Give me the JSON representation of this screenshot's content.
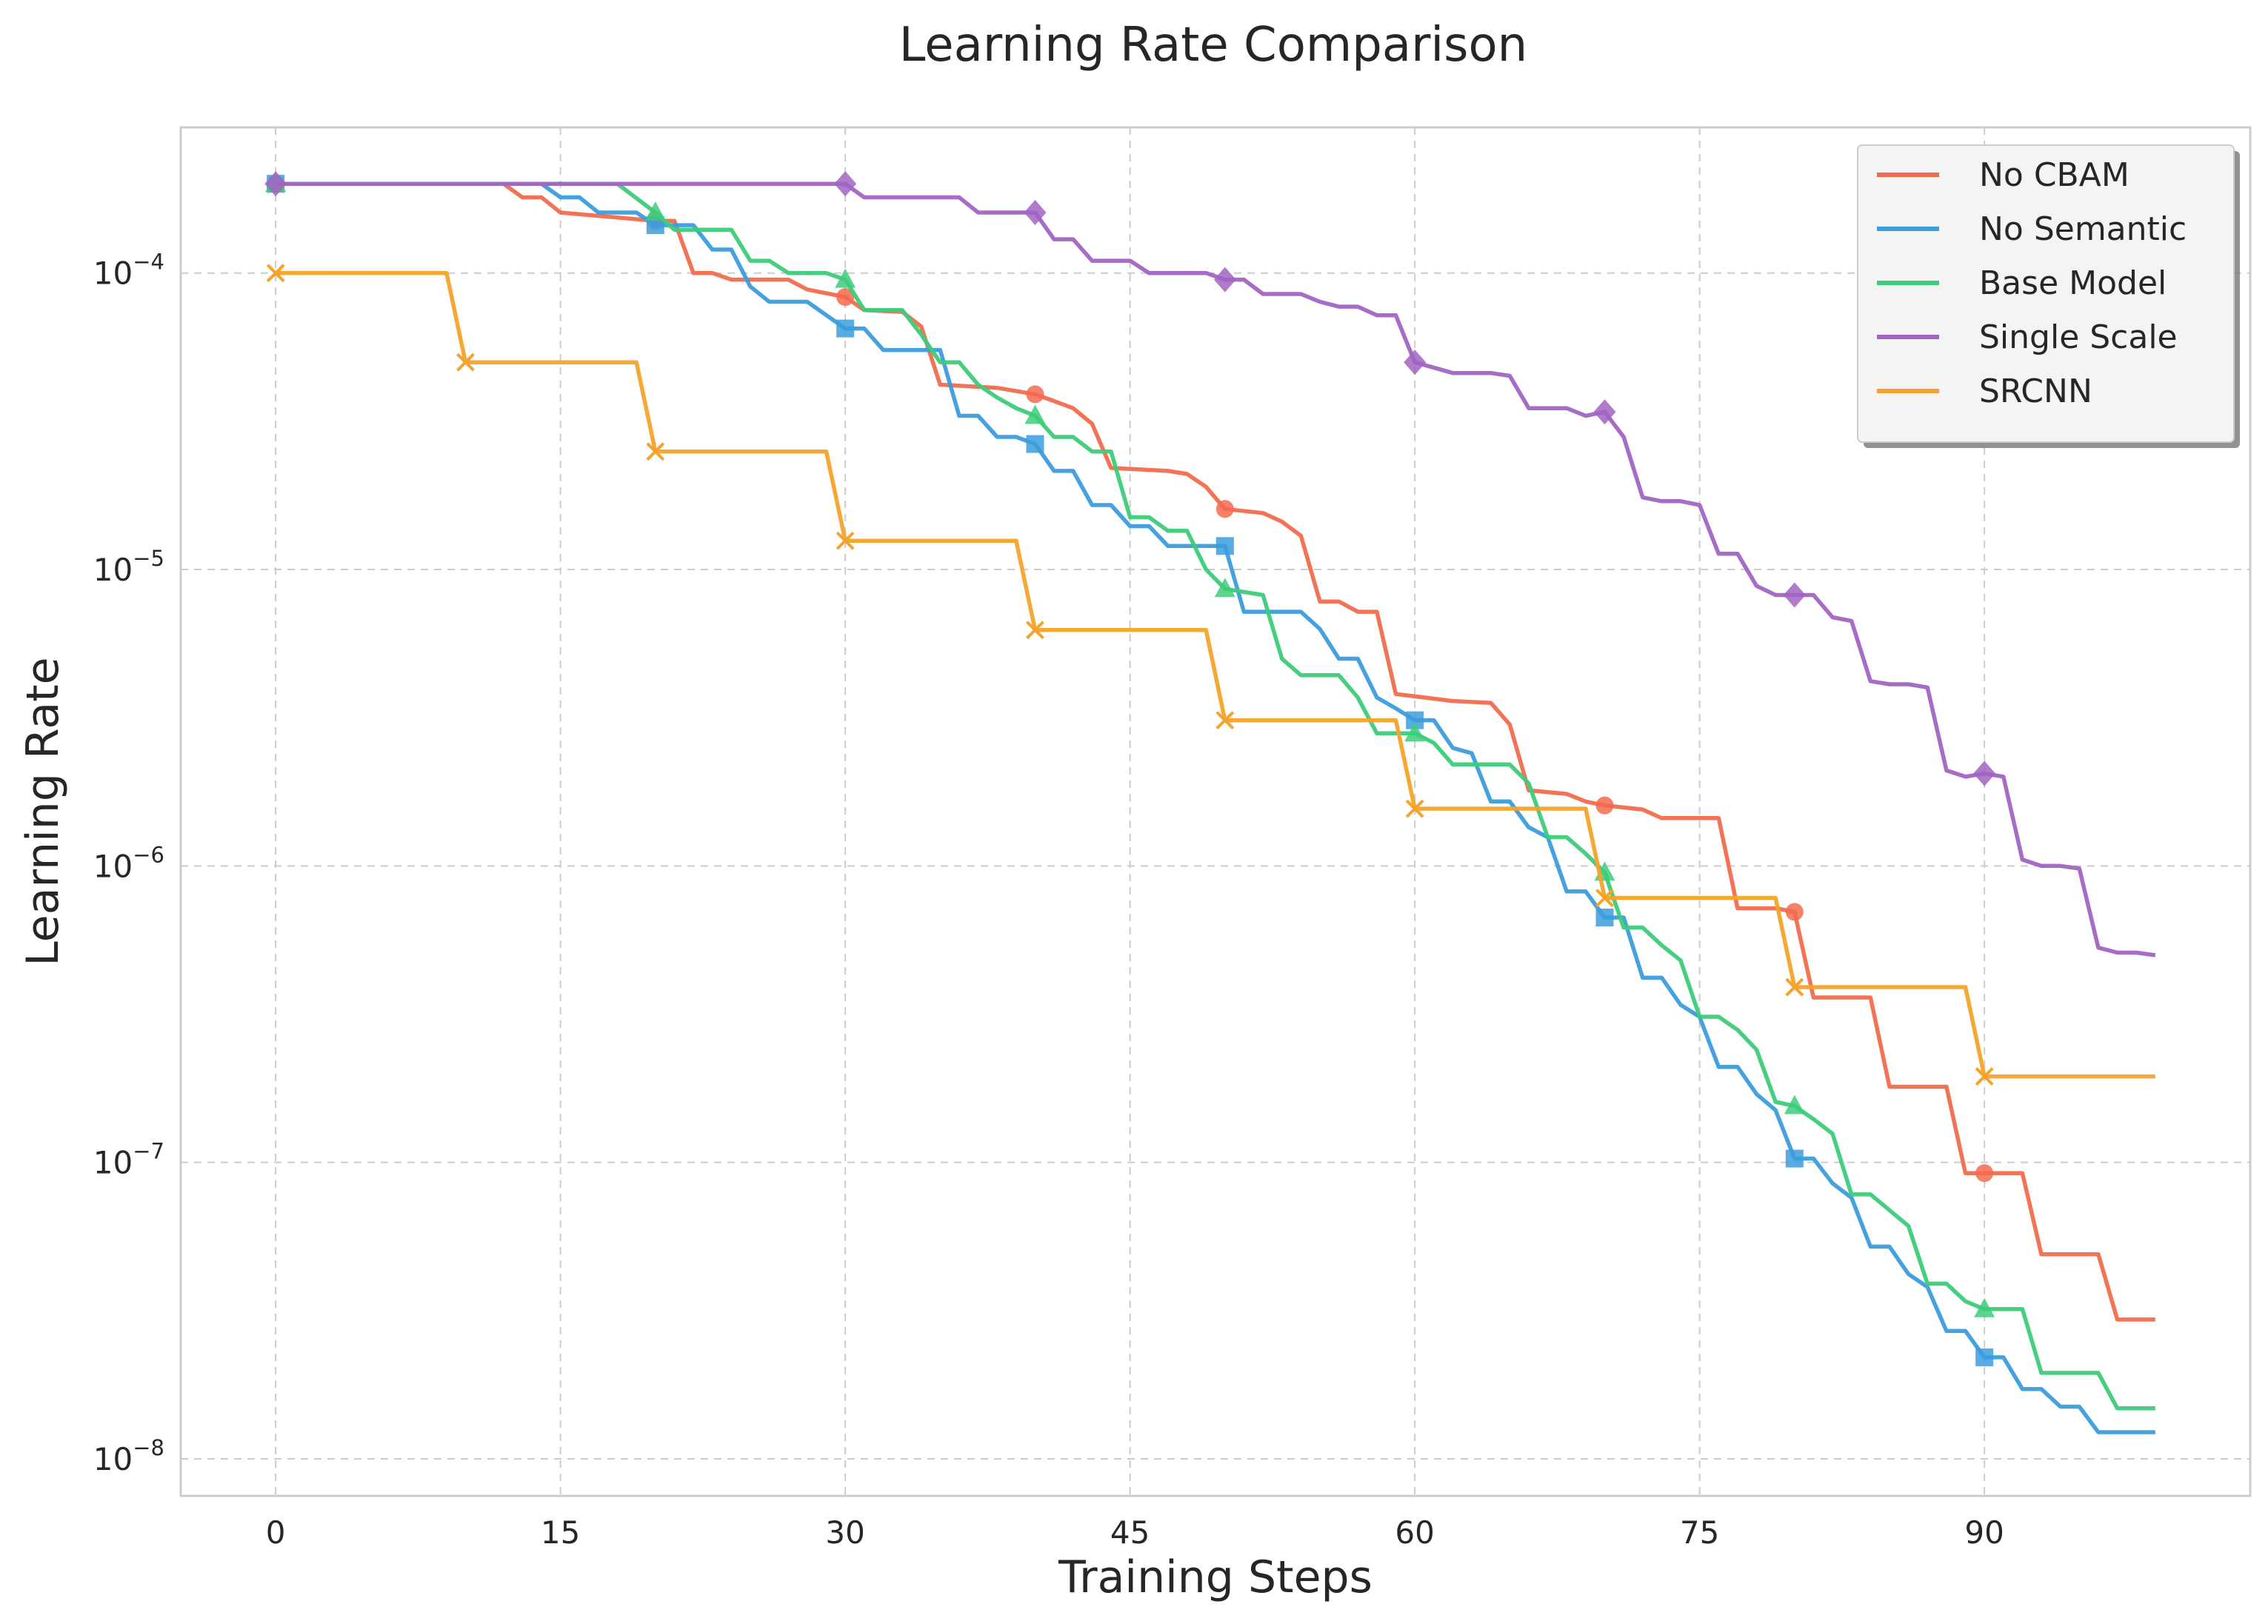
{
  "chart_data": {
    "type": "line",
    "title": "Learning Rate Comparison",
    "xlabel": "Training Steps",
    "ylabel": "Learning Rate",
    "xlim": [
      -5,
      104
    ],
    "ylim": [
      7.5e-09,
      0.00031
    ],
    "yscale": "log",
    "grid": true,
    "legend_position": "top-right",
    "x_ticks": [
      0,
      15,
      30,
      45,
      60,
      75,
      90
    ],
    "x_tick_labels": [
      "0",
      "15",
      "30",
      "45",
      "60",
      "75",
      "90"
    ],
    "y_ticks": [
      0.0001,
      1e-05,
      1e-06,
      1e-07,
      1e-08
    ],
    "y_tick_labels": [
      {
        "base": "10",
        "exp": "−4"
      },
      {
        "base": "10",
        "exp": "−5"
      },
      {
        "base": "10",
        "exp": "−6"
      },
      {
        "base": "10",
        "exp": "−7"
      },
      {
        "base": "10",
        "exp": "−8"
      }
    ],
    "marker_every": 10,
    "series": [
      {
        "name": "No CBAM",
        "color": "#f26b4d",
        "marker": "circle",
        "points": [
          [
            0,
            0.0002
          ],
          [
            12,
            0.0002
          ],
          [
            13,
            0.00018
          ],
          [
            14,
            0.00018
          ],
          [
            15,
            0.00016
          ],
          [
            20,
            0.00015
          ],
          [
            21,
            0.00015
          ],
          [
            22,
            0.0001
          ],
          [
            23,
            0.0001
          ],
          [
            24,
            9.5e-05
          ],
          [
            27,
            9.5e-05
          ],
          [
            28,
            8.8e-05
          ],
          [
            30,
            8.3e-05
          ],
          [
            31,
            7.5e-05
          ],
          [
            33,
            7.4e-05
          ],
          [
            34,
            6.6e-05
          ],
          [
            35,
            4.2e-05
          ],
          [
            38,
            4.1e-05
          ],
          [
            40,
            3.9e-05
          ],
          [
            41,
            3.7e-05
          ],
          [
            42,
            3.5e-05
          ],
          [
            43,
            3.1e-05
          ],
          [
            44,
            2.2e-05
          ],
          [
            47,
            2.15e-05
          ],
          [
            48,
            2.1e-05
          ],
          [
            49,
            1.9e-05
          ],
          [
            50,
            1.6e-05
          ],
          [
            52,
            1.55e-05
          ],
          [
            53,
            1.45e-05
          ],
          [
            54,
            1.3e-05
          ],
          [
            55,
            7.8e-06
          ],
          [
            56,
            7.8e-06
          ],
          [
            57,
            7.2e-06
          ],
          [
            58,
            7.2e-06
          ],
          [
            59,
            3.8e-06
          ],
          [
            62,
            3.6e-06
          ],
          [
            64,
            3.55e-06
          ],
          [
            65,
            3e-06
          ],
          [
            66,
            1.8e-06
          ],
          [
            68,
            1.75e-06
          ],
          [
            69,
            1.65e-06
          ],
          [
            70,
            1.6e-06
          ],
          [
            72,
            1.55e-06
          ],
          [
            73,
            1.45e-06
          ],
          [
            75,
            1.45e-06
          ],
          [
            76,
            1.45e-06
          ],
          [
            77,
            7.2e-07
          ],
          [
            79,
            7.2e-07
          ],
          [
            80,
            7e-07
          ],
          [
            81,
            3.6e-07
          ],
          [
            84,
            3.6e-07
          ],
          [
            85,
            1.8e-07
          ],
          [
            88,
            1.8e-07
          ],
          [
            89,
            9.2e-08
          ],
          [
            90,
            9.2e-08
          ],
          [
            92,
            9.2e-08
          ],
          [
            93,
            4.9e-08
          ],
          [
            96,
            4.9e-08
          ],
          [
            97,
            2.95e-08
          ],
          [
            99,
            2.95e-08
          ]
        ]
      },
      {
        "name": "No Semantic",
        "color": "#3b9ddd",
        "marker": "square",
        "points": [
          [
            0,
            0.0002
          ],
          [
            13,
            0.0002
          ],
          [
            14,
            0.0002
          ],
          [
            15,
            0.00018
          ],
          [
            16,
            0.00018
          ],
          [
            17,
            0.00016
          ],
          [
            19,
            0.00016
          ],
          [
            20,
            0.000145
          ],
          [
            22,
            0.000145
          ],
          [
            23,
            0.00012
          ],
          [
            24,
            0.00012
          ],
          [
            25,
            9e-05
          ],
          [
            26,
            8e-05
          ],
          [
            28,
            8e-05
          ],
          [
            30,
            6.5e-05
          ],
          [
            31,
            6.5e-05
          ],
          [
            32,
            5.5e-05
          ],
          [
            35,
            5.5e-05
          ],
          [
            36,
            3.3e-05
          ],
          [
            37,
            3.3e-05
          ],
          [
            38,
            2.8e-05
          ],
          [
            39,
            2.8e-05
          ],
          [
            40,
            2.65e-05
          ],
          [
            41,
            2.15e-05
          ],
          [
            42,
            2.15e-05
          ],
          [
            43,
            1.65e-05
          ],
          [
            44,
            1.65e-05
          ],
          [
            45,
            1.4e-05
          ],
          [
            46,
            1.4e-05
          ],
          [
            47,
            1.2e-05
          ],
          [
            50,
            1.2e-05
          ],
          [
            51,
            7.2e-06
          ],
          [
            54,
            7.2e-06
          ],
          [
            55,
            6.3e-06
          ],
          [
            56,
            5e-06
          ],
          [
            57,
            5e-06
          ],
          [
            58,
            3.7e-06
          ],
          [
            59,
            3.4e-06
          ],
          [
            60,
            3.1e-06
          ],
          [
            61,
            3.1e-06
          ],
          [
            62,
            2.5e-06
          ],
          [
            63,
            2.4e-06
          ],
          [
            64,
            1.65e-06
          ],
          [
            65,
            1.65e-06
          ],
          [
            66,
            1.35e-06
          ],
          [
            67,
            1.25e-06
          ],
          [
            68,
            8.2e-07
          ],
          [
            69,
            8.2e-07
          ],
          [
            70,
            6.7e-07
          ],
          [
            71,
            6.7e-07
          ],
          [
            72,
            4.2e-07
          ],
          [
            73,
            4.2e-07
          ],
          [
            74,
            3.4e-07
          ],
          [
            75,
            3.1e-07
          ],
          [
            76,
            2.1e-07
          ],
          [
            77,
            2.1e-07
          ],
          [
            78,
            1.7e-07
          ],
          [
            79,
            1.5e-07
          ],
          [
            80,
            1.03e-07
          ],
          [
            81,
            1.03e-07
          ],
          [
            82,
            8.5e-08
          ],
          [
            83,
            7.6e-08
          ],
          [
            84,
            5.2e-08
          ],
          [
            85,
            5.2e-08
          ],
          [
            86,
            4.2e-08
          ],
          [
            87,
            3.8e-08
          ],
          [
            88,
            2.7e-08
          ],
          [
            89,
            2.7e-08
          ],
          [
            90,
            2.2e-08
          ],
          [
            91,
            2.2e-08
          ],
          [
            92,
            1.72e-08
          ],
          [
            93,
            1.72e-08
          ],
          [
            94,
            1.5e-08
          ],
          [
            95,
            1.5e-08
          ],
          [
            96,
            1.23e-08
          ],
          [
            99,
            1.23e-08
          ]
        ]
      },
      {
        "name": "Base Model",
        "color": "#3dcc7a",
        "marker": "triangle",
        "points": [
          [
            0,
            0.0002
          ],
          [
            18,
            0.0002
          ],
          [
            20,
            0.00016
          ],
          [
            21,
            0.00014
          ],
          [
            24,
            0.00014
          ],
          [
            25,
            0.00011
          ],
          [
            26,
            0.00011
          ],
          [
            27,
            0.0001
          ],
          [
            29,
            0.0001
          ],
          [
            30,
            9.5e-05
          ],
          [
            31,
            7.5e-05
          ],
          [
            33,
            7.5e-05
          ],
          [
            34,
            6.2e-05
          ],
          [
            35,
            5e-05
          ],
          [
            36,
            5e-05
          ],
          [
            37,
            4.2e-05
          ],
          [
            38,
            3.8e-05
          ],
          [
            39,
            3.5e-05
          ],
          [
            40,
            3.3e-05
          ],
          [
            41,
            2.8e-05
          ],
          [
            42,
            2.8e-05
          ],
          [
            43,
            2.5e-05
          ],
          [
            44,
            2.5e-05
          ],
          [
            45,
            1.5e-05
          ],
          [
            46,
            1.5e-05
          ],
          [
            47,
            1.35e-05
          ],
          [
            48,
            1.35e-05
          ],
          [
            49,
            1e-05
          ],
          [
            50,
            8.6e-06
          ],
          [
            52,
            8.2e-06
          ],
          [
            53,
            5e-06
          ],
          [
            54,
            4.4e-06
          ],
          [
            56,
            4.4e-06
          ],
          [
            57,
            3.7e-06
          ],
          [
            58,
            2.8e-06
          ],
          [
            59,
            2.8e-06
          ],
          [
            60,
            2.8e-06
          ],
          [
            61,
            2.6e-06
          ],
          [
            62,
            2.2e-06
          ],
          [
            65,
            2.2e-06
          ],
          [
            66,
            1.9e-06
          ],
          [
            67,
            1.25e-06
          ],
          [
            68,
            1.25e-06
          ],
          [
            69,
            1.1e-06
          ],
          [
            70,
            9.5e-07
          ],
          [
            71,
            6.2e-07
          ],
          [
            72,
            6.2e-07
          ],
          [
            73,
            5.4e-07
          ],
          [
            74,
            4.8e-07
          ],
          [
            75,
            3.1e-07
          ],
          [
            76,
            3.1e-07
          ],
          [
            77,
            2.8e-07
          ],
          [
            78,
            2.4e-07
          ],
          [
            79,
            1.6e-07
          ],
          [
            80,
            1.55e-07
          ],
          [
            81,
            1.4e-07
          ],
          [
            82,
            1.25e-07
          ],
          [
            83,
            7.8e-08
          ],
          [
            84,
            7.8e-08
          ],
          [
            85,
            6.9e-08
          ],
          [
            86,
            6.1e-08
          ],
          [
            87,
            3.9e-08
          ],
          [
            88,
            3.9e-08
          ],
          [
            89,
            3.4e-08
          ],
          [
            90,
            3.2e-08
          ],
          [
            92,
            3.2e-08
          ],
          [
            93,
            1.95e-08
          ],
          [
            96,
            1.95e-08
          ],
          [
            97,
            1.48e-08
          ],
          [
            99,
            1.48e-08
          ]
        ]
      },
      {
        "name": "Single Scale",
        "color": "#a264c2",
        "marker": "diamond",
        "points": [
          [
            0,
            0.0002
          ],
          [
            30,
            0.0002
          ],
          [
            31,
            0.00018
          ],
          [
            36,
            0.00018
          ],
          [
            37,
            0.00016
          ],
          [
            40,
            0.00016
          ],
          [
            41,
            0.00013
          ],
          [
            42,
            0.00013
          ],
          [
            43,
            0.00011
          ],
          [
            45,
            0.00011
          ],
          [
            46,
            0.0001
          ],
          [
            49,
            0.0001
          ],
          [
            50,
            9.5e-05
          ],
          [
            51,
            9.5e-05
          ],
          [
            52,
            8.5e-05
          ],
          [
            54,
            8.5e-05
          ],
          [
            55,
            8e-05
          ],
          [
            56,
            7.7e-05
          ],
          [
            57,
            7.7e-05
          ],
          [
            58,
            7.2e-05
          ],
          [
            59,
            7.2e-05
          ],
          [
            60,
            5e-05
          ],
          [
            62,
            4.6e-05
          ],
          [
            64,
            4.6e-05
          ],
          [
            65,
            4.5e-05
          ],
          [
            66,
            3.5e-05
          ],
          [
            68,
            3.5e-05
          ],
          [
            69,
            3.3e-05
          ],
          [
            70,
            3.4e-05
          ],
          [
            71,
            2.8e-05
          ],
          [
            72,
            1.75e-05
          ],
          [
            73,
            1.7e-05
          ],
          [
            74,
            1.7e-05
          ],
          [
            75,
            1.65e-05
          ],
          [
            76,
            1.13e-05
          ],
          [
            77,
            1.13e-05
          ],
          [
            78,
            8.8e-06
          ],
          [
            79,
            8.2e-06
          ],
          [
            80,
            8.2e-06
          ],
          [
            81,
            8.2e-06
          ],
          [
            82,
            6.9e-06
          ],
          [
            83,
            6.7e-06
          ],
          [
            84,
            4.2e-06
          ],
          [
            85,
            4.1e-06
          ],
          [
            86,
            4.1e-06
          ],
          [
            87,
            4e-06
          ],
          [
            88,
            2.1e-06
          ],
          [
            89,
            2e-06
          ],
          [
            90,
            2.05e-06
          ],
          [
            91,
            2e-06
          ],
          [
            92,
            1.05e-06
          ],
          [
            93,
            1e-06
          ],
          [
            94,
            1e-06
          ],
          [
            95,
            9.8e-07
          ],
          [
            96,
            5.3e-07
          ],
          [
            97,
            5.1e-07
          ],
          [
            98,
            5.1e-07
          ],
          [
            99,
            5e-07
          ]
        ]
      },
      {
        "name": "SRCNN",
        "color": "#f5a32a",
        "marker": "x",
        "points": [
          [
            0,
            0.0001
          ],
          [
            9,
            0.0001
          ],
          [
            10,
            5e-05
          ],
          [
            19,
            5e-05
          ],
          [
            20,
            2.5e-05
          ],
          [
            29,
            2.5e-05
          ],
          [
            30,
            1.25e-05
          ],
          [
            39,
            1.25e-05
          ],
          [
            40,
            6.25e-06
          ],
          [
            49,
            6.25e-06
          ],
          [
            50,
            3.1e-06
          ],
          [
            59,
            3.1e-06
          ],
          [
            60,
            1.56e-06
          ],
          [
            69,
            1.56e-06
          ],
          [
            70,
            7.8e-07
          ],
          [
            79,
            7.8e-07
          ],
          [
            80,
            3.9e-07
          ],
          [
            89,
            3.9e-07
          ],
          [
            90,
            1.95e-07
          ],
          [
            99,
            1.95e-07
          ]
        ]
      }
    ]
  }
}
